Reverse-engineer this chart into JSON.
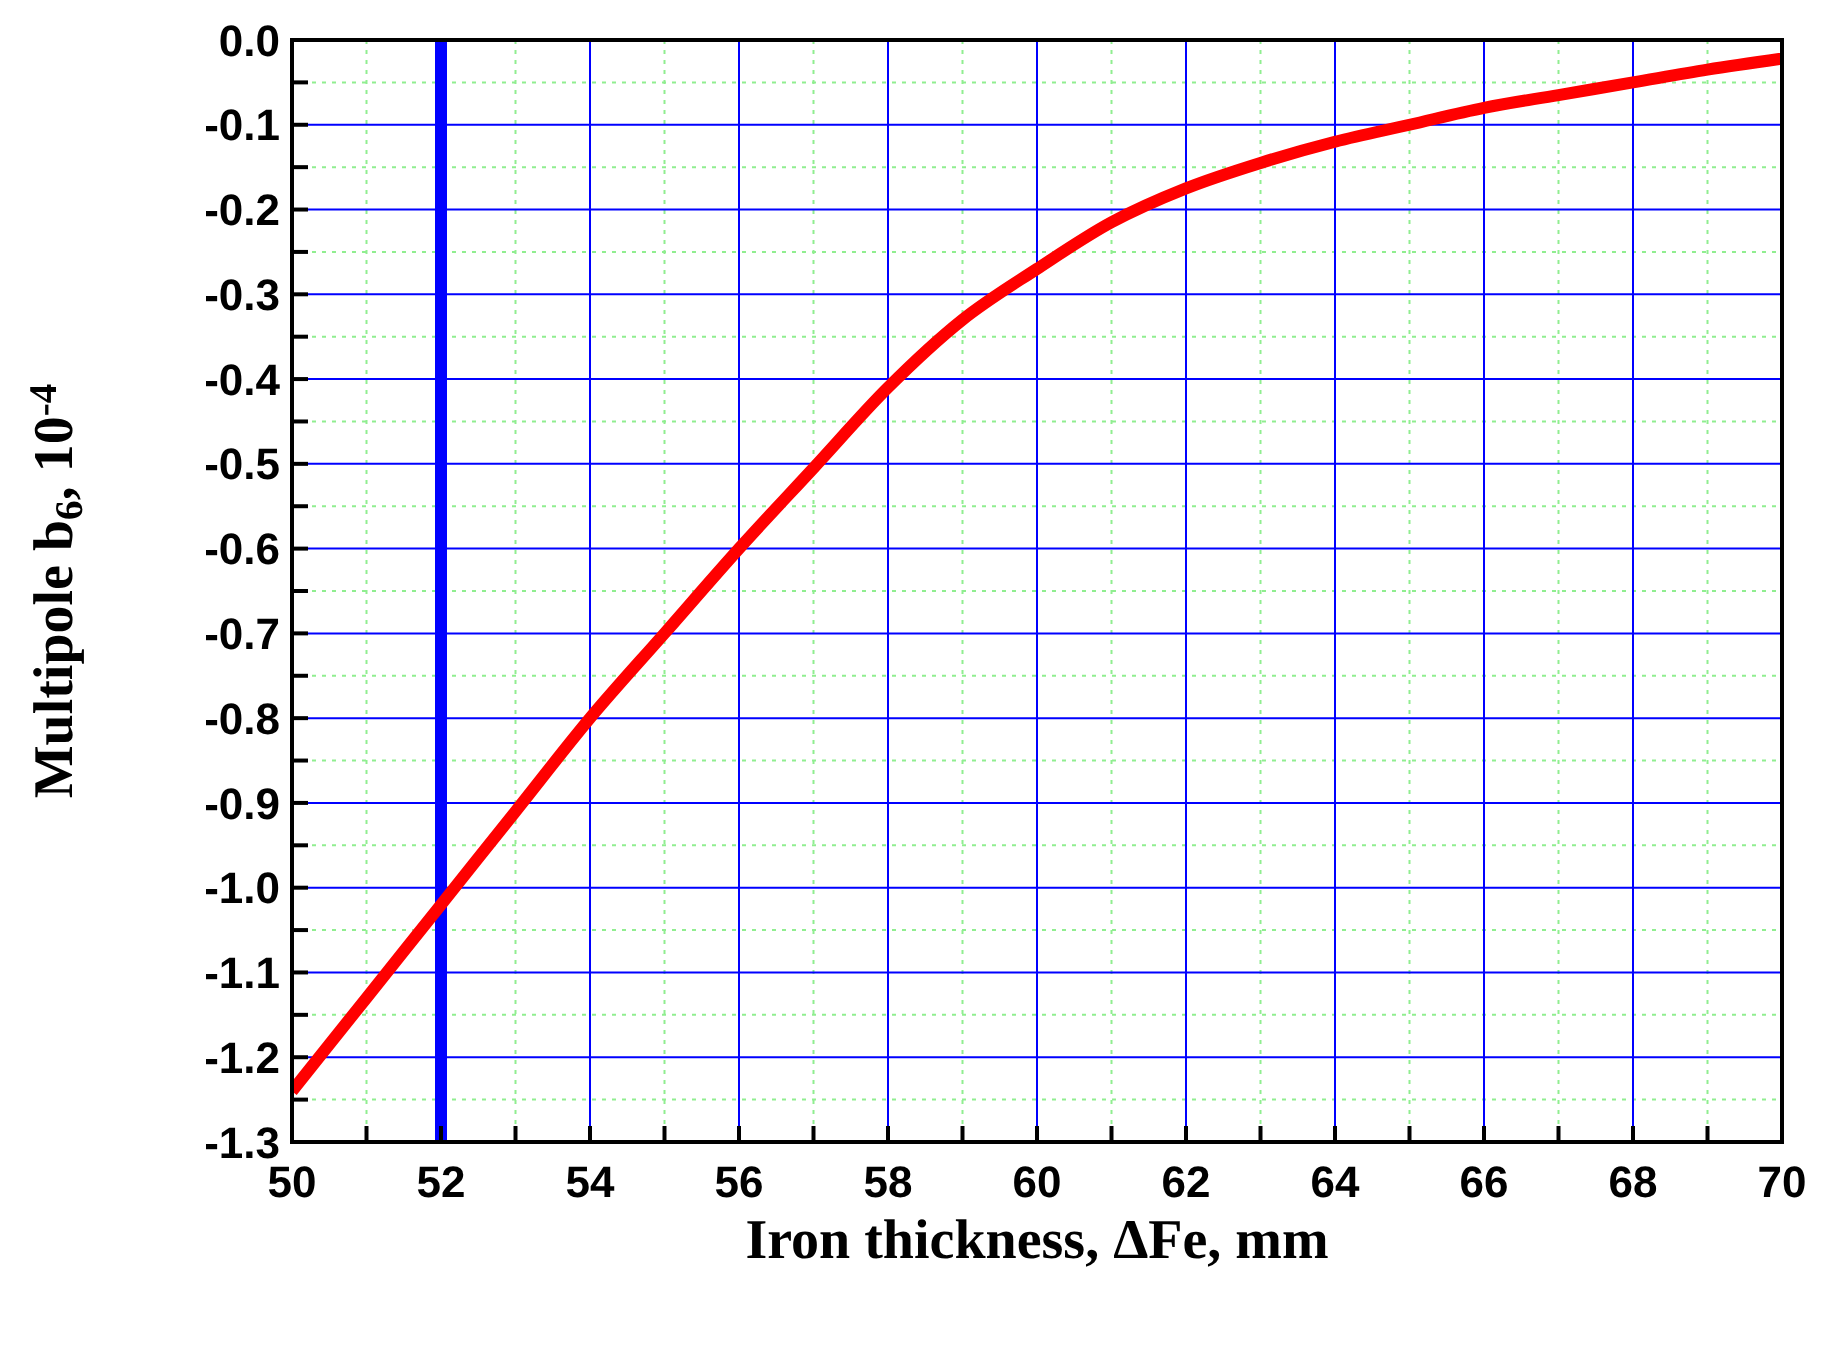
{
  "chart_data": {
    "type": "line",
    "xlabel": "Iron thickness, ΔFe, mm",
    "ylabel": "Multipole b$_{6}$, 10$^{-4}$",
    "x": [
      50,
      51,
      52,
      53,
      54,
      55,
      56,
      57,
      58,
      59,
      60,
      61,
      62,
      63,
      64,
      65,
      66,
      67,
      68,
      69,
      70
    ],
    "series": [
      {
        "color": "#ff0000",
        "values": [
          -1.24,
          -1.13,
          -1.02,
          -0.91,
          -0.8,
          -0.7,
          -0.6,
          -0.505,
          -0.41,
          -0.33,
          -0.27,
          -0.215,
          -0.175,
          -0.145,
          -0.12,
          -0.1,
          -0.08,
          -0.065,
          -0.05,
          -0.035,
          -0.022
        ]
      }
    ],
    "xlim": [
      50,
      70
    ],
    "xticks": [
      50,
      {
        "value": 51,
        "label": null
      },
      52,
      {
        "value": 53,
        "label": null
      },
      54,
      {
        "value": 55,
        "label": null
      },
      56,
      {
        "value": 57,
        "label": null
      },
      58,
      {
        "value": 59,
        "label": null
      },
      60,
      {
        "value": 61,
        "label": null
      },
      62,
      {
        "value": 63,
        "label": null
      },
      64,
      {
        "value": 65,
        "label": null
      },
      66,
      {
        "value": 67,
        "label": null
      },
      68,
      {
        "value": 69,
        "label": null
      },
      70
    ],
    "ylim": [
      -1.3,
      0
    ],
    "yticks": [
      -1.3,
      {
        "value": -1.25,
        "label": null
      },
      -1.2,
      {
        "value": -1.15,
        "label": null
      },
      -1.1,
      {
        "value": -1.05,
        "label": null
      },
      {
        "value": -1.0,
        "label": "-1.0"
      },
      {
        "value": -0.95,
        "label": null
      },
      -0.9,
      {
        "value": -0.85,
        "label": null
      },
      -0.8,
      {
        "value": -0.75,
        "label": null
      },
      -0.7,
      {
        "value": -0.65,
        "label": null
      },
      -0.6,
      {
        "value": -0.55,
        "label": null
      },
      -0.5,
      {
        "value": -0.45,
        "label": null
      },
      -0.4,
      {
        "value": -0.35,
        "label": null
      },
      -0.3,
      {
        "value": -0.25,
        "label": null
      },
      -0.2,
      {
        "value": -0.15,
        "label": null
      },
      -0.1,
      {
        "value": -0.05,
        "label": null
      },
      {
        "value": 0,
        "label": "0.0"
      }
    ],
    "ref_lines": [
      {
        "axis": "x",
        "value": 52,
        "color": "#0000ff"
      }
    ],
    "grid": true,
    "marker": "none",
    "line_style": "solid",
    "legend": false
  }
}
